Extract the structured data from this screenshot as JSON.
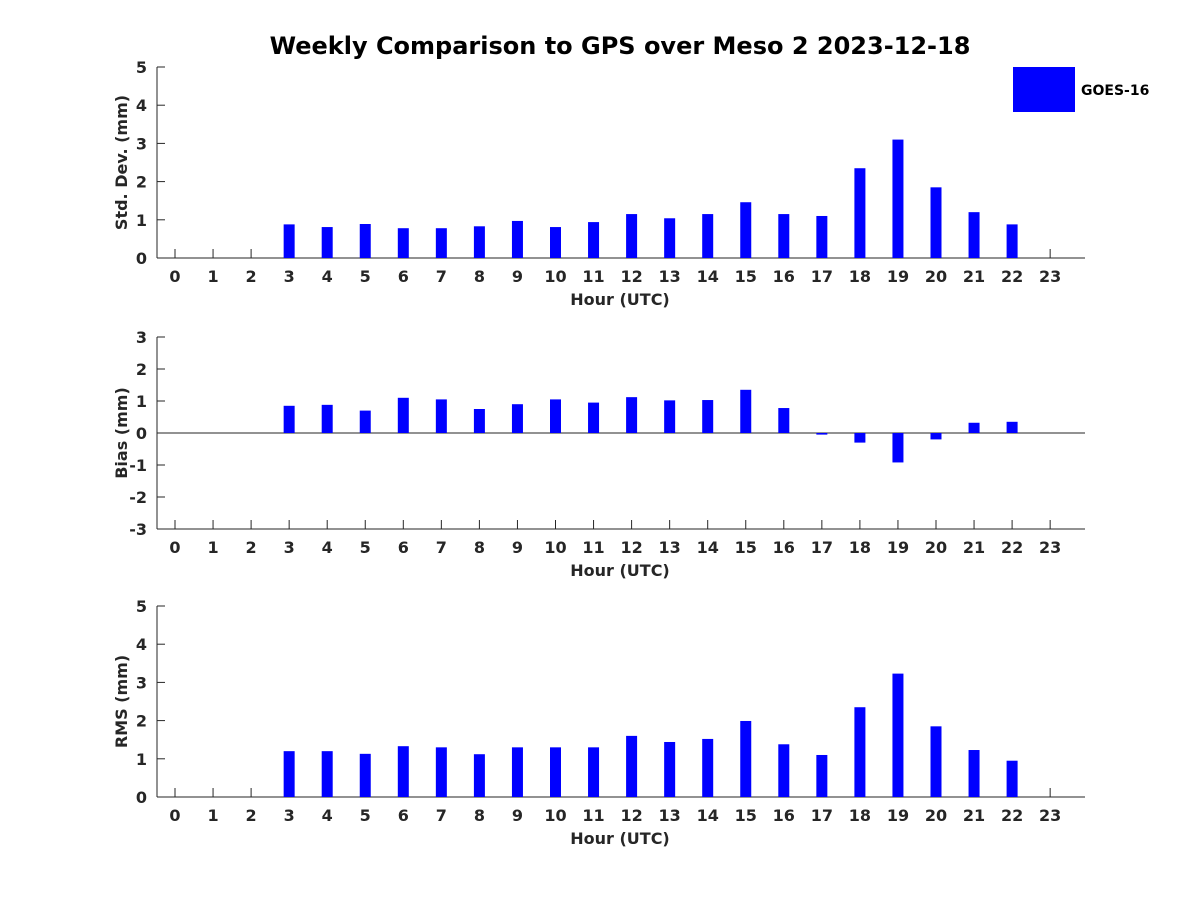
{
  "chart_data": {
    "title": "Weekly Comparison to GPS over Meso 2 2023-12-18",
    "legend": {
      "label": "GOES-16",
      "color": "#0000ff",
      "placement": "top-right"
    },
    "panels": [
      {
        "type": "bar",
        "ylabel": "Std. Dev. (mm)",
        "xlabel": "Hour (UTC)",
        "ylim": [
          0,
          5
        ],
        "yticks": [
          "0",
          "1",
          "2",
          "3",
          "4",
          "5"
        ],
        "categories": [
          "0",
          "1",
          "2",
          "3",
          "4",
          "5",
          "6",
          "7",
          "8",
          "9",
          "10",
          "11",
          "12",
          "13",
          "14",
          "15",
          "16",
          "17",
          "18",
          "19",
          "20",
          "21",
          "22",
          "23"
        ],
        "values": [
          null,
          null,
          null,
          0.88,
          0.81,
          0.89,
          0.78,
          0.78,
          0.83,
          0.97,
          0.81,
          0.94,
          1.15,
          1.04,
          1.15,
          1.46,
          1.15,
          1.1,
          2.35,
          3.1,
          1.85,
          1.2,
          0.88,
          null
        ]
      },
      {
        "type": "bar",
        "ylabel": "Bias (mm)",
        "xlabel": "Hour (UTC)",
        "ylim": [
          -3,
          3
        ],
        "yticks": [
          "-3",
          "-2",
          "-1",
          "0",
          "1",
          "2",
          "3"
        ],
        "zero_line": true,
        "categories": [
          "0",
          "1",
          "2",
          "3",
          "4",
          "5",
          "6",
          "7",
          "8",
          "9",
          "10",
          "11",
          "12",
          "13",
          "14",
          "15",
          "16",
          "17",
          "18",
          "19",
          "20",
          "21",
          "22",
          "23"
        ],
        "values": [
          null,
          null,
          null,
          0.85,
          0.88,
          0.7,
          1.1,
          1.05,
          0.75,
          0.9,
          1.05,
          0.95,
          1.12,
          1.02,
          1.03,
          1.35,
          0.78,
          -0.05,
          -0.3,
          -0.92,
          -0.2,
          0.32,
          0.35,
          null
        ]
      },
      {
        "type": "bar",
        "ylabel": "RMS (mm)",
        "xlabel": "Hour (UTC)",
        "ylim": [
          0,
          5
        ],
        "yticks": [
          "0",
          "1",
          "2",
          "3",
          "4",
          "5"
        ],
        "categories": [
          "0",
          "1",
          "2",
          "3",
          "4",
          "5",
          "6",
          "7",
          "8",
          "9",
          "10",
          "11",
          "12",
          "13",
          "14",
          "15",
          "16",
          "17",
          "18",
          "19",
          "20",
          "21",
          "22",
          "23"
        ],
        "values": [
          null,
          null,
          null,
          1.2,
          1.2,
          1.13,
          1.33,
          1.3,
          1.12,
          1.3,
          1.3,
          1.3,
          1.6,
          1.44,
          1.52,
          1.99,
          1.38,
          1.1,
          2.35,
          3.23,
          1.85,
          1.23,
          0.95,
          null
        ]
      }
    ]
  }
}
